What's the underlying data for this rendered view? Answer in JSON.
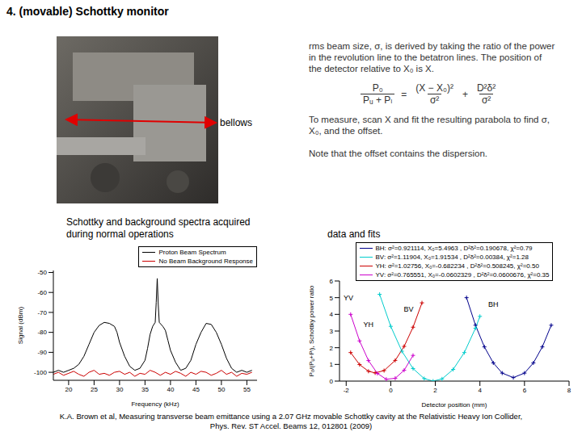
{
  "title": "4. (movable) Schottky monitor",
  "photo": {
    "label": "bellows"
  },
  "description": {
    "paragraph1": "rms beam size, σ, is derived by taking the ratio of the power in the revolution line to the betatron lines. The position of the detector relative to X₀ is X.",
    "equation": {
      "lhs": {
        "num": "P₀",
        "den": "Pᵤ + Pₗ"
      },
      "rhs": [
        {
          "num": "(X − X₀)²",
          "den": "σ²"
        },
        {
          "num": "D²δ²",
          "den": "σ²"
        }
      ],
      "operators": [
        "=",
        "+"
      ]
    },
    "paragraph2": "To measure, scan X and fit the resulting parabola to find σ, X₀, and the offset.",
    "note": "Note that the offset contains the dispersion."
  },
  "captions": [
    "Schottky and background spectra acquired during normal operations",
    "data and fits"
  ],
  "citation": [
    "K.A. Brown et al, Measuring transverse beam emittance using a 2.07 GHz movable Schottky cavity at the Relativistic Heavy Ion Collider,",
    "Phys. Rev. ST Accel. Beams 12, 012801 (2009)"
  ],
  "chart_data": [
    {
      "type": "line",
      "x_label": "Frequency (kHz)",
      "y_label": "Signal (dBm)",
      "xlim": [
        17,
        57
      ],
      "xticks": [
        20,
        25,
        30,
        35,
        40,
        45,
        50,
        55
      ],
      "ylim": [
        -104,
        -49
      ],
      "yticks": [
        -100,
        -90,
        -80,
        -70,
        -60,
        -50
      ],
      "grid": false,
      "legend": "upper right",
      "marker": "none",
      "series": [
        {
          "name": "Proton Beam Spectrum",
          "color": "#000000",
          "x": [
            17,
            18,
            19,
            20,
            21,
            22,
            23,
            24,
            25,
            26,
            27,
            28,
            29,
            29.5,
            30,
            31,
            32,
            33,
            34,
            35,
            35.5,
            36,
            36.5,
            37,
            37.2,
            37.4,
            37.6,
            37.8,
            38.5,
            39,
            39.5,
            40,
            41,
            42,
            43,
            44,
            45,
            46,
            47,
            48,
            49,
            50,
            51,
            52,
            53,
            54,
            55,
            56
          ],
          "values": [
            -100,
            -99,
            -100,
            -99,
            -98,
            -96,
            -92,
            -86,
            -80,
            -76.5,
            -75,
            -75.5,
            -77,
            -80,
            -85,
            -92,
            -97,
            -99,
            -98,
            -94,
            -88,
            -81,
            -77,
            -75,
            -65,
            -53,
            -66,
            -75,
            -77,
            -79,
            -84,
            -89,
            -95,
            -99,
            -98,
            -94,
            -86,
            -80,
            -75.5,
            -76,
            -80,
            -86,
            -93,
            -98,
            -100,
            -99,
            -100,
            -99
          ]
        },
        {
          "name": "No Beam Background Response",
          "color": "#cc0000",
          "x": [
            17,
            18,
            19,
            20,
            21,
            22,
            23,
            24,
            25,
            26,
            27,
            28,
            29,
            30,
            31,
            32,
            33,
            34,
            35,
            36,
            37,
            38,
            39,
            40,
            41,
            42,
            43,
            44,
            45,
            46,
            47,
            48,
            49,
            50,
            51,
            52,
            53,
            54,
            55,
            56
          ],
          "values": [
            -101,
            -100,
            -101.5,
            -100.5,
            -99.5,
            -101,
            -102,
            -100,
            -99,
            -101,
            -100.5,
            -101.5,
            -100,
            -99.5,
            -101,
            -100,
            -102,
            -100.5,
            -101,
            -99,
            -100,
            -101.5,
            -100,
            -101,
            -99.5,
            -100.5,
            -102,
            -100,
            -101,
            -99.5,
            -100,
            -101.5,
            -100.5,
            -99,
            -101,
            -100,
            -102,
            -100.5,
            -101,
            -100
          ]
        }
      ]
    },
    {
      "type": "line",
      "x_label": "Detector position (mm)",
      "y_label": "P₀/(Pᵤ+Pₗ), Schottky power ratio",
      "xlim": [
        -2.3,
        8
      ],
      "xticks": [
        -2,
        0,
        2,
        4,
        6,
        8
      ],
      "ylim": [
        0,
        6
      ],
      "yticks": [
        0,
        1,
        2,
        3,
        4,
        5,
        6
      ],
      "grid": false,
      "legend": "upper center",
      "marker": "plus",
      "series": [
        {
          "name": "BH: σ²=0.921114, X₀=5.4963 , D²δ²=0.190678, χ²=0.79",
          "color": "#00008b",
          "x": [
            3.4,
            3.8,
            4.2,
            4.6,
            5.0,
            5.5,
            6.0,
            6.4,
            6.8,
            7.2
          ],
          "values": [
            5.0,
            3.35,
            2.05,
            1.09,
            0.48,
            0.21,
            0.48,
            1.09,
            2.05,
            3.35
          ]
        },
        {
          "name": "BV: σ²=1.11904, X₀=1.91534 , D²δ²=0.00384, χ²=1.28",
          "color": "#00cccc",
          "x": [
            -0.5,
            0,
            0.5,
            1.0,
            1.5,
            1.9,
            2.3,
            2.8,
            3.3,
            3.8,
            4.0
          ],
          "values": [
            5.2,
            3.28,
            1.79,
            0.75,
            0.15,
            0.0,
            0.13,
            0.7,
            1.71,
            3.17,
            3.88
          ]
        },
        {
          "name": "YH: σ²=1.02756, X₀=-0.682234 , D²δ²=0.508245, χ²=0.50",
          "color": "#cc0000",
          "x": [
            -1.8,
            -1.4,
            -1.0,
            -0.7,
            -0.3,
            0.2,
            0.6,
            1.0,
            1.4
          ],
          "values": [
            1.71,
            0.99,
            0.59,
            0.49,
            0.63,
            1.24,
            2.08,
            3.23,
            4.69
          ]
        },
        {
          "name": "YV: σ²=0.765551, X₀=-0.0602329 , D²δ²=0.0600676, χ²=0.35",
          "color": "#cc00cc",
          "x": [
            -1.8,
            -1.4,
            -1.0,
            -0.6,
            -0.2,
            0.2,
            0.6,
            1.0
          ],
          "values": [
            4.0,
            2.41,
            1.23,
            0.46,
            0.11,
            0.17,
            0.65,
            1.54
          ]
        }
      ],
      "annotations": [
        {
          "text": "YV",
          "x": -1.9,
          "y": 5.0
        },
        {
          "text": "YH",
          "x": -1.0,
          "y": 3.4
        },
        {
          "text": "BV",
          "x": 0.8,
          "y": 4.3
        },
        {
          "text": "BH",
          "x": 4.6,
          "y": 4.6
        }
      ]
    }
  ]
}
